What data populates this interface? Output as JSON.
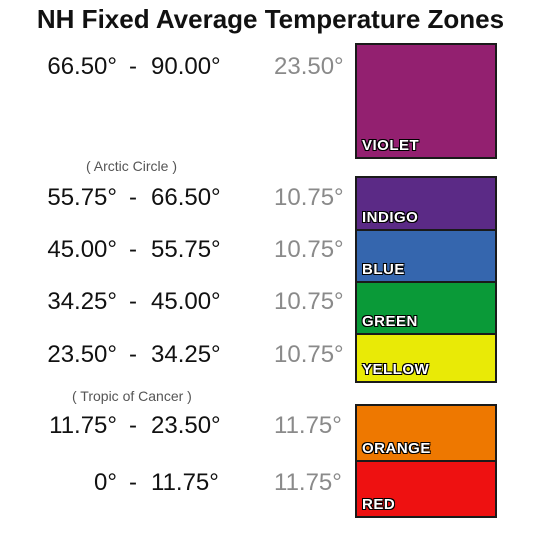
{
  "title": "NH Fixed Average Temperature Zones",
  "notes": {
    "arctic": "( Arctic Circle )",
    "tropic": "( Tropic of Cancer )"
  },
  "zones": [
    {
      "low": "66.50°",
      "high": "90.00°",
      "dash": "-",
      "span": "23.50°",
      "label": "VIOLET",
      "color": "#932070"
    },
    {
      "low": "55.75°",
      "high": "66.50°",
      "dash": "-",
      "span": "10.75°",
      "label": "INDIGO",
      "color": "#5b2a86"
    },
    {
      "low": "45.00°",
      "high": "55.75°",
      "dash": "-",
      "span": "10.75°",
      "label": "BLUE",
      "color": "#3566ae"
    },
    {
      "low": "34.25°",
      "high": "45.00°",
      "dash": "-",
      "span": "10.75°",
      "label": "GREEN",
      "color": "#0a9a38"
    },
    {
      "low": "23.50°",
      "high": "34.25°",
      "dash": "-",
      "span": "10.75°",
      "label": "YELLOW",
      "color": "#e9ea06"
    },
    {
      "low": "11.75°",
      "high": "23.50°",
      "dash": "-",
      "span": "11.75°",
      "label": "ORANGE",
      "color": "#ee7800"
    },
    {
      "low": "0°",
      "high": "11.75°",
      "dash": "-",
      "span": "11.75°",
      "label": "RED",
      "color": "#ee1111"
    }
  ]
}
